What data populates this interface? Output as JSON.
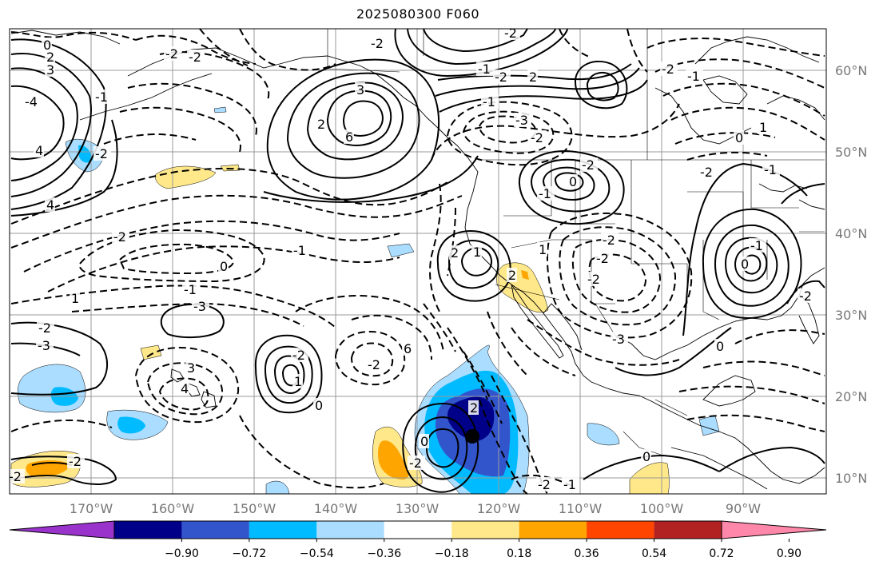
{
  "title": "2025080300 F060",
  "colors": {
    "background": "#ffffff",
    "grid": "#999999",
    "contour": "#000000",
    "coast": "#000000"
  },
  "lat_labels": [
    "60°N",
    "50°N",
    "40°N",
    "30°N",
    "20°N",
    "10°N"
  ],
  "lon_labels": [
    "170°W",
    "160°W",
    "150°W",
    "140°W",
    "130°W",
    "120°W",
    "110°W",
    "100°W",
    "90°W"
  ],
  "colorbar": {
    "colors": [
      "#9933cc",
      "#000088",
      "#3355cc",
      "#00bbff",
      "#aaddff",
      "#ffffff",
      "#ffe88a",
      "#ffa500",
      "#ff4500",
      "#b22222",
      "#ff88aa"
    ],
    "ticks": [
      "−0.90",
      "−0.72",
      "−0.54",
      "−0.36",
      "−0.18",
      "0.18",
      "0.36",
      "0.54",
      "0.72",
      "0.90"
    ]
  },
  "contour_labels": [
    "0",
    "2",
    "3",
    "-2",
    "-2",
    "-2",
    "-1",
    "-4",
    "-2",
    "4",
    "2",
    "3",
    "6",
    "4",
    "1",
    "-2",
    "-1",
    "0",
    "-1",
    "-2",
    "-3",
    "-3",
    "-2",
    "6",
    "3",
    "4",
    "-2",
    "1",
    "0",
    "2",
    "0",
    "-2",
    "-2",
    "-1",
    "-2",
    "2",
    "-1",
    "-3",
    "-2",
    "-2",
    "0",
    "-1",
    "-2",
    "-2",
    "-2",
    "-3",
    "-2",
    "-1",
    "1",
    "0",
    "-1",
    "-2",
    "-1",
    "0",
    "0",
    "-2",
    "-2",
    "-1",
    "0",
    "-2",
    "-2",
    "1",
    "2",
    "2",
    "1",
    "0",
    "2",
    "2",
    "1",
    "-2",
    "0",
    "0",
    "-1",
    "-2",
    "-2",
    "0",
    "-1",
    "0",
    "0",
    "0",
    "0",
    "0",
    "-1",
    "-1",
    "0",
    "0",
    "0",
    "-1",
    "2",
    "2",
    "-1",
    "1",
    "0"
  ]
}
